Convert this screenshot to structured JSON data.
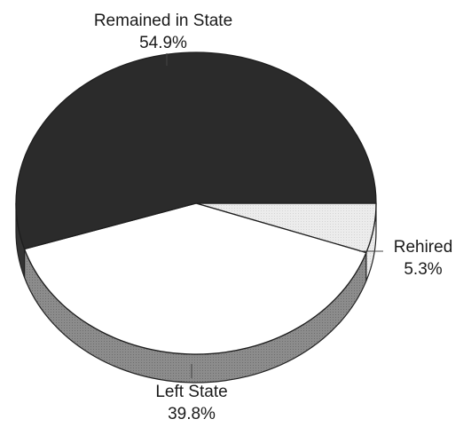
{
  "chart_data": {
    "type": "pie",
    "style": "3d",
    "categories": [
      "Remained in State",
      "Rehired",
      "Left State"
    ],
    "values": [
      54.9,
      5.3,
      39.8
    ],
    "value_labels": [
      "54.9%",
      "5.3%",
      "39.8%"
    ],
    "colors": [
      "#2b2b2b",
      "#e6e6e6",
      "#ffffff"
    ],
    "side_color": "#8a8a8a",
    "title": "",
    "legend": "none"
  }
}
